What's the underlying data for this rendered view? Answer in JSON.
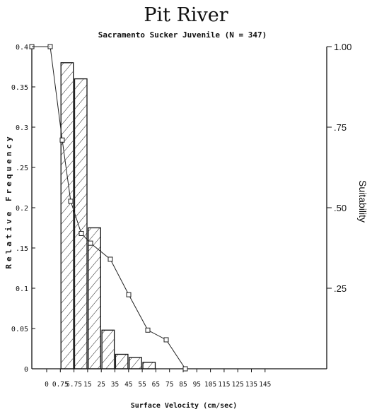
{
  "chart_data": {
    "type": "bar",
    "title": "Pit River",
    "subtitle": "Sacramento Sucker Juvenile (N = 347)",
    "xlabel": "Surface Velocity (cm/sec)",
    "ylabel_left": "Relative Frequency",
    "ylabel_right": "Suitability",
    "categories": [
      "0",
      "0.75",
      "5.75",
      "15",
      "25",
      "35",
      "45",
      "55",
      "65",
      "75",
      "85",
      "95",
      "105",
      "115",
      "125",
      "135",
      "145"
    ],
    "y_left_ticks": [
      "0",
      "0.05",
      "0.1",
      ".15",
      "0.2",
      ".25",
      "0.3",
      "0.35",
      "0.4"
    ],
    "y_left_range": [
      0,
      0.4
    ],
    "y_right_ticks": [
      ".25",
      ".50",
      ".75",
      "1.00"
    ],
    "y_right_range": [
      0,
      1.0
    ],
    "bars": {
      "name": "Relative Frequency",
      "categories": [
        "0.75",
        "5.75",
        "15",
        "25",
        "35",
        "45",
        "55"
      ],
      "values": [
        0.38,
        0.36,
        0.175,
        0.048,
        0.018,
        0.014,
        0.008
      ]
    },
    "suitability_curve": {
      "name": "Suitability",
      "x": [
        "-",
        "0",
        "0.75-5.75",
        "5.75",
        "5.75-15",
        "15",
        "25",
        "35",
        "45",
        "55",
        "65"
      ],
      "values": [
        1.0,
        1.0,
        0.71,
        0.52,
        0.42,
        0.39,
        0.34,
        0.23,
        0.12,
        0.09,
        0.0
      ]
    }
  }
}
